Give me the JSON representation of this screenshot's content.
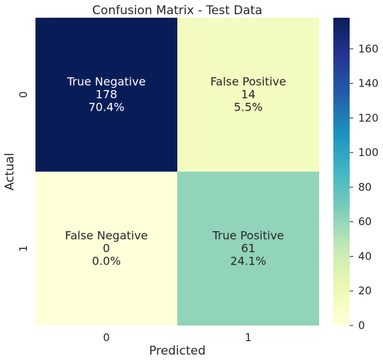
{
  "chart_data": {
    "type": "heatmap",
    "title": "Confusion Matrix - Test Data",
    "xlabel": "Predicted",
    "ylabel": "Actual",
    "x_categories": [
      "0",
      "1"
    ],
    "y_categories": [
      "0",
      "1"
    ],
    "values": [
      [
        178,
        14
      ],
      [
        0,
        61
      ]
    ],
    "cells": [
      [
        {
          "name": "True Negative",
          "count": "178",
          "percent": "70.4%"
        },
        {
          "name": "False Positive",
          "count": "14",
          "percent": "5.5%"
        }
      ],
      [
        {
          "name": "False Negative",
          "count": "0",
          "percent": "0.0%"
        },
        {
          "name": "True Positive",
          "count": "61",
          "percent": "24.1%"
        }
      ]
    ],
    "colormap": "YlGnBu",
    "colorbar": {
      "range": [
        0,
        178
      ],
      "ticks": [
        0,
        20,
        40,
        60,
        80,
        100,
        120,
        140,
        160
      ]
    },
    "grid": false,
    "legend": "right"
  }
}
